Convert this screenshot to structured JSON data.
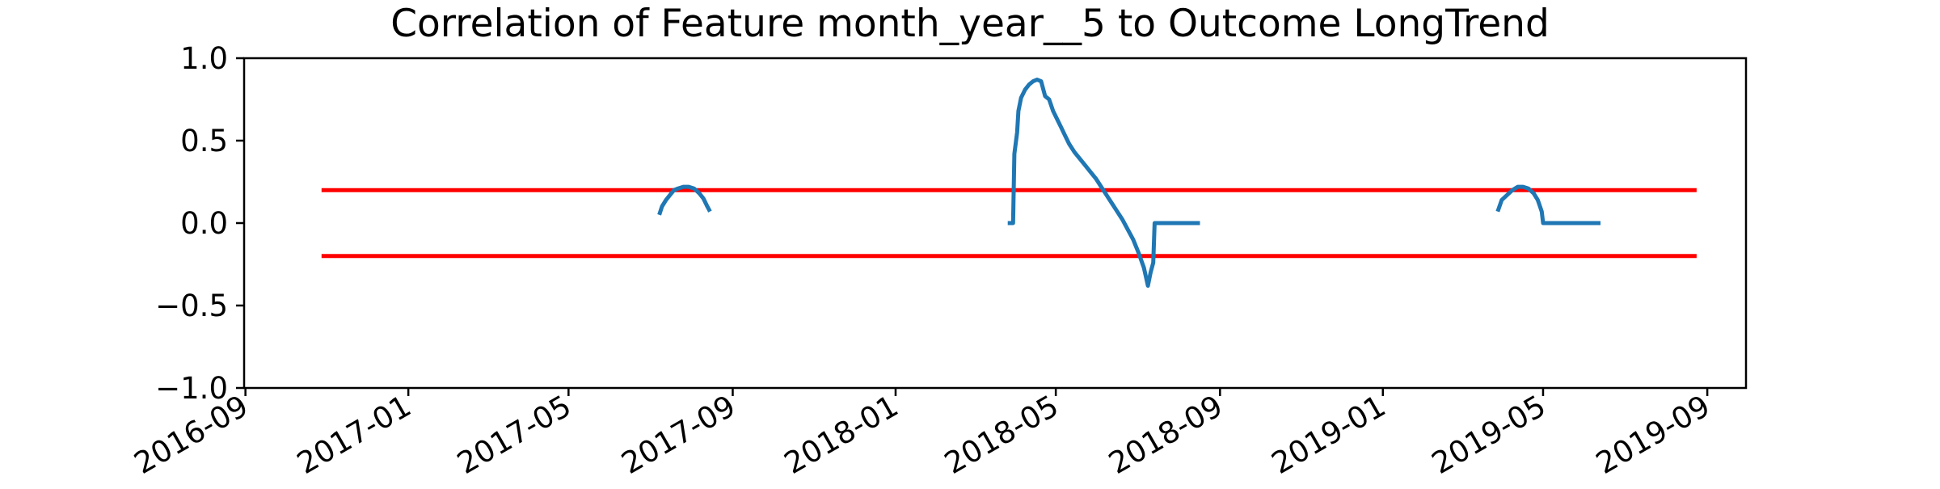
{
  "chart_data": {
    "type": "line",
    "title": "Correlation of Feature month_year__5 to Outcome LongTrend",
    "xlabel": "",
    "ylabel": "",
    "xlim": [
      "2016-08-31",
      "2019-09-30"
    ],
    "ylim": [
      -1.0,
      1.0
    ],
    "x_ticks": [
      "2016-09",
      "2017-01",
      "2017-05",
      "2017-09",
      "2018-01",
      "2018-05",
      "2018-09",
      "2019-01",
      "2019-05",
      "2019-09"
    ],
    "y_ticks": [
      "−1.0",
      "−0.5",
      "0.0",
      "0.5",
      "1.0"
    ],
    "grid": false,
    "legend": "none",
    "colors": {
      "series": "#1f77b4",
      "threshold": "#ff0000",
      "axes": "#000000",
      "background": "#ffffff"
    },
    "thresholds": [
      {
        "y": 0.2,
        "x": [
          "2016-10-28",
          "2019-08-24"
        ]
      },
      {
        "y": -0.2,
        "x": [
          "2016-10-28",
          "2019-08-24"
        ]
      }
    ],
    "series": [
      {
        "values": [
          {
            "x": "2017-07-08",
            "y": 0.05
          },
          {
            "x": "2017-07-10",
            "y": 0.1
          },
          {
            "x": "2017-07-13",
            "y": 0.14
          },
          {
            "x": "2017-07-16",
            "y": 0.17
          },
          {
            "x": "2017-07-19",
            "y": 0.2
          },
          {
            "x": "2017-07-22",
            "y": 0.21
          },
          {
            "x": "2017-07-26",
            "y": 0.22
          },
          {
            "x": "2017-07-30",
            "y": 0.22
          },
          {
            "x": "2017-08-03",
            "y": 0.21
          },
          {
            "x": "2017-08-07",
            "y": 0.18
          },
          {
            "x": "2017-08-10",
            "y": 0.15
          },
          {
            "x": "2017-08-13",
            "y": 0.1
          },
          {
            "x": "2017-08-15",
            "y": 0.07
          },
          null,
          {
            "x": "2018-03-26",
            "y": 0.0
          },
          {
            "x": "2018-03-30",
            "y": 0.0
          },
          {
            "x": "2018-03-31",
            "y": 0.42
          },
          {
            "x": "2018-04-02",
            "y": 0.55
          },
          {
            "x": "2018-04-03",
            "y": 0.68
          },
          {
            "x": "2018-04-05",
            "y": 0.76
          },
          {
            "x": "2018-04-08",
            "y": 0.81
          },
          {
            "x": "2018-04-11",
            "y": 0.84
          },
          {
            "x": "2018-04-14",
            "y": 0.86
          },
          {
            "x": "2018-04-17",
            "y": 0.87
          },
          {
            "x": "2018-04-20",
            "y": 0.86
          },
          {
            "x": "2018-04-23",
            "y": 0.77
          },
          {
            "x": "2018-04-26",
            "y": 0.75
          },
          {
            "x": "2018-04-29",
            "y": 0.68
          },
          {
            "x": "2018-05-02",
            "y": 0.63
          },
          {
            "x": "2018-05-05",
            "y": 0.58
          },
          {
            "x": "2018-05-08",
            "y": 0.53
          },
          {
            "x": "2018-05-11",
            "y": 0.48
          },
          {
            "x": "2018-05-15",
            "y": 0.43
          },
          {
            "x": "2018-05-19",
            "y": 0.39
          },
          {
            "x": "2018-05-23",
            "y": 0.35
          },
          {
            "x": "2018-05-27",
            "y": 0.31
          },
          {
            "x": "2018-05-31",
            "y": 0.27
          },
          {
            "x": "2018-06-04",
            "y": 0.22
          },
          {
            "x": "2018-06-08",
            "y": 0.17
          },
          {
            "x": "2018-06-12",
            "y": 0.12
          },
          {
            "x": "2018-06-16",
            "y": 0.07
          },
          {
            "x": "2018-06-20",
            "y": 0.02
          },
          {
            "x": "2018-06-24",
            "y": -0.04
          },
          {
            "x": "2018-06-28",
            "y": -0.1
          },
          {
            "x": "2018-07-02",
            "y": -0.18
          },
          {
            "x": "2018-07-06",
            "y": -0.27
          },
          {
            "x": "2018-07-09",
            "y": -0.38
          },
          {
            "x": "2018-07-11",
            "y": -0.3
          },
          {
            "x": "2018-07-13",
            "y": -0.24
          },
          {
            "x": "2018-07-14",
            "y": 0.0
          },
          {
            "x": "2018-08-17",
            "y": 0.0
          },
          null,
          {
            "x": "2019-03-28",
            "y": 0.07
          },
          {
            "x": "2019-03-31",
            "y": 0.14
          },
          {
            "x": "2019-04-04",
            "y": 0.17
          },
          {
            "x": "2019-04-08",
            "y": 0.2
          },
          {
            "x": "2019-04-12",
            "y": 0.22
          },
          {
            "x": "2019-04-16",
            "y": 0.22
          },
          {
            "x": "2019-04-20",
            "y": 0.21
          },
          {
            "x": "2019-04-24",
            "y": 0.18
          },
          {
            "x": "2019-04-27",
            "y": 0.14
          },
          {
            "x": "2019-04-30",
            "y": 0.07
          },
          {
            "x": "2019-05-01",
            "y": 0.0
          },
          {
            "x": "2019-06-13",
            "y": 0.0
          }
        ]
      }
    ]
  }
}
